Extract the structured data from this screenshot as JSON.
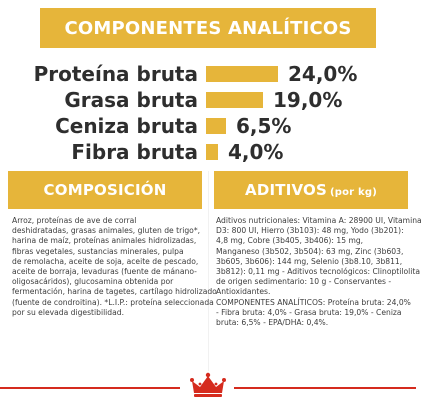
{
  "header": {
    "title": "COMPONENTES ANALÍTICOS"
  },
  "analytics": [
    {
      "label": "Proteína bruta",
      "value": "24,0%",
      "percent": 24.0
    },
    {
      "label": "Grasa bruta",
      "value": "19,0%",
      "percent": 19.0
    },
    {
      "label": "Ceniza bruta",
      "value": "6,5%",
      "percent": 6.5
    },
    {
      "label": "Fibra bruta",
      "value": "4,0%",
      "percent": 4.0
    }
  ],
  "composition": {
    "title": "COMPOSICIÓN",
    "lines": [
      "Arroz, proteínas de ave de corral",
      "deshidratadas, grasas animales, gluten de trigo*,",
      "harina de maíz, proteínas animales hidrolizadas,",
      "fibras vegetales, sustancias minerales, pulpa",
      "de remolacha, aceite de soja, aceite de pescado,",
      "aceite de borraja, levaduras (fuente de mánano-",
      "oligosacáridos), glucosamina obtenida por",
      "fermentación, harina de tagetes, cartílago hidrolizado",
      "(fuente de condroitina). *L.I.P.: proteína seleccionada",
      "por su elevada digestibilidad."
    ]
  },
  "additives": {
    "title": "ADITIVOS",
    "title_suffix": "(por kg)",
    "lines": [
      "Aditivos nutricionales: Vitamina A: 28900 UI, Vitamina",
      "D3: 800 UI, Hierro (3b103): 48 mg, Yodo (3b201):",
      "4,8 mg, Cobre (3b405, 3b406): 15 mg,",
      "Manganeso (3b502, 3b504): 63 mg, Zinc (3b603,",
      "3b605, 3b606): 144 mg, Selenio (3b8.10, 3b811,",
      "3b812): 0,11 mg - Aditivos tecnológicos: Clinoptilolita",
      "de origen sedimentario: 10 g - Conservantes -",
      "Antioxidantes.",
      "COMPONENTES ANALÍTICOS: Proteína bruta: 24,0%",
      "- Fibra bruta: 4,0% - Grasa bruta: 19,0% - Ceniza",
      "bruta: 6,5% - EPA/DHA: 0,4%."
    ]
  },
  "colors": {
    "accent": "#e6b53a",
    "brand_red": "#d52b1e"
  },
  "footer": {
    "logo": "crown-icon"
  }
}
